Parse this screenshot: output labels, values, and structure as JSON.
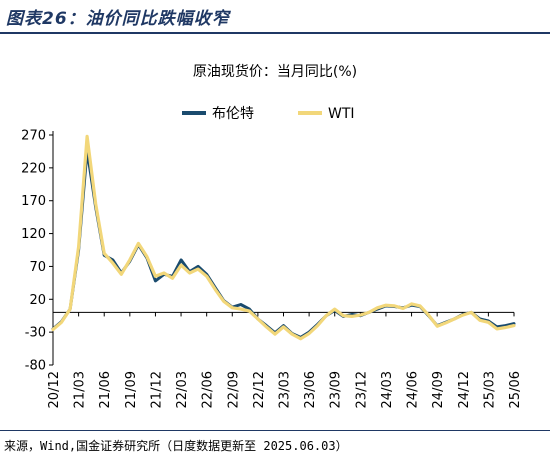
{
  "figure": {
    "label": "图表26：油价同比跌幅收窄",
    "source": "来源，Wind,国金证券研究所（日度数据更新至 2025.06.03）"
  },
  "chart_data": {
    "type": "line",
    "title": "原油现货价：当月同比(%)",
    "xlabel": "",
    "ylabel": "",
    "ylim": [
      -80,
      270
    ],
    "yticks": [
      270,
      220,
      170,
      120,
      70,
      20,
      -30,
      -80
    ],
    "xlim": [
      "2020-12",
      "2025-06"
    ],
    "xticks": [
      "20/12",
      "21/03",
      "21/06",
      "21/09",
      "21/12",
      "22/03",
      "22/06",
      "22/09",
      "22/12",
      "23/03",
      "23/06",
      "23/09",
      "23/12",
      "24/03",
      "24/06",
      "24/09",
      "24/12",
      "25/03",
      "25/06"
    ],
    "legend_position": "top-center",
    "grid": false,
    "series": [
      {
        "name": "布伦特",
        "color": "#1a4b6e",
        "points": [
          [
            "2020-12",
            -25
          ],
          [
            "2021-01",
            -14
          ],
          [
            "2021-02",
            5
          ],
          [
            "2021-03",
            95
          ],
          [
            "2021-04",
            247
          ],
          [
            "2021-05",
            160
          ],
          [
            "2021-06",
            87
          ],
          [
            "2021-07",
            80
          ],
          [
            "2021-08",
            60
          ],
          [
            "2021-09",
            78
          ],
          [
            "2021-10",
            103
          ],
          [
            "2021-11",
            83
          ],
          [
            "2021-12",
            48
          ],
          [
            "2022-01",
            58
          ],
          [
            "2022-02",
            55
          ],
          [
            "2022-03",
            80
          ],
          [
            "2022-04",
            62
          ],
          [
            "2022-05",
            70
          ],
          [
            "2022-06",
            58
          ],
          [
            "2022-07",
            38
          ],
          [
            "2022-08",
            18
          ],
          [
            "2022-09",
            8
          ],
          [
            "2022-10",
            12
          ],
          [
            "2022-11",
            5
          ],
          [
            "2022-12",
            -10
          ],
          [
            "2023-01",
            -20
          ],
          [
            "2023-02",
            -31
          ],
          [
            "2023-03",
            -20
          ],
          [
            "2023-04",
            -32
          ],
          [
            "2023-05",
            -38
          ],
          [
            "2023-06",
            -30
          ],
          [
            "2023-07",
            -18
          ],
          [
            "2023-08",
            -5
          ],
          [
            "2023-09",
            3
          ],
          [
            "2023-10",
            -6
          ],
          [
            "2023-11",
            -3
          ],
          [
            "2023-12",
            -5
          ],
          [
            "2024-01",
            0
          ],
          [
            "2024-02",
            5
          ],
          [
            "2024-03",
            10
          ],
          [
            "2024-04",
            9
          ],
          [
            "2024-05",
            7
          ],
          [
            "2024-06",
            11
          ],
          [
            "2024-07",
            9
          ],
          [
            "2024-08",
            -5
          ],
          [
            "2024-09",
            -20
          ],
          [
            "2024-10",
            -15
          ],
          [
            "2024-11",
            -10
          ],
          [
            "2024-12",
            -3
          ],
          [
            "2025-01",
            0
          ],
          [
            "2025-02",
            -10
          ],
          [
            "2025-03",
            -13
          ],
          [
            "2025-04",
            -22
          ],
          [
            "2025-05",
            -20
          ],
          [
            "2025-06",
            -17
          ]
        ]
      },
      {
        "name": "WTI",
        "color": "#f2d77a",
        "points": [
          [
            "2020-12",
            -26
          ],
          [
            "2021-01",
            -15
          ],
          [
            "2021-02",
            5
          ],
          [
            "2021-03",
            100
          ],
          [
            "2021-04",
            268
          ],
          [
            "2021-05",
            165
          ],
          [
            "2021-06",
            90
          ],
          [
            "2021-07",
            75
          ],
          [
            "2021-08",
            58
          ],
          [
            "2021-09",
            80
          ],
          [
            "2021-10",
            105
          ],
          [
            "2021-11",
            85
          ],
          [
            "2021-12",
            55
          ],
          [
            "2022-01",
            60
          ],
          [
            "2022-02",
            52
          ],
          [
            "2022-03",
            72
          ],
          [
            "2022-04",
            60
          ],
          [
            "2022-05",
            66
          ],
          [
            "2022-06",
            55
          ],
          [
            "2022-07",
            35
          ],
          [
            "2022-08",
            17
          ],
          [
            "2022-09",
            7
          ],
          [
            "2022-10",
            5
          ],
          [
            "2022-11",
            2
          ],
          [
            "2022-12",
            -10
          ],
          [
            "2023-01",
            -22
          ],
          [
            "2023-02",
            -33
          ],
          [
            "2023-03",
            -22
          ],
          [
            "2023-04",
            -33
          ],
          [
            "2023-05",
            -40
          ],
          [
            "2023-06",
            -32
          ],
          [
            "2023-07",
            -20
          ],
          [
            "2023-08",
            -5
          ],
          [
            "2023-09",
            5
          ],
          [
            "2023-10",
            -5
          ],
          [
            "2023-11",
            -6
          ],
          [
            "2023-12",
            -4
          ],
          [
            "2024-01",
            0
          ],
          [
            "2024-02",
            7
          ],
          [
            "2024-03",
            11
          ],
          [
            "2024-04",
            10
          ],
          [
            "2024-05",
            6
          ],
          [
            "2024-06",
            13
          ],
          [
            "2024-07",
            10
          ],
          [
            "2024-08",
            -4
          ],
          [
            "2024-09",
            -21
          ],
          [
            "2024-10",
            -16
          ],
          [
            "2024-11",
            -10
          ],
          [
            "2024-12",
            -4
          ],
          [
            "2025-01",
            0
          ],
          [
            "2025-02",
            -12
          ],
          [
            "2025-03",
            -15
          ],
          [
            "2025-04",
            -25
          ],
          [
            "2025-05",
            -23
          ],
          [
            "2025-06",
            -20
          ]
        ]
      }
    ]
  }
}
